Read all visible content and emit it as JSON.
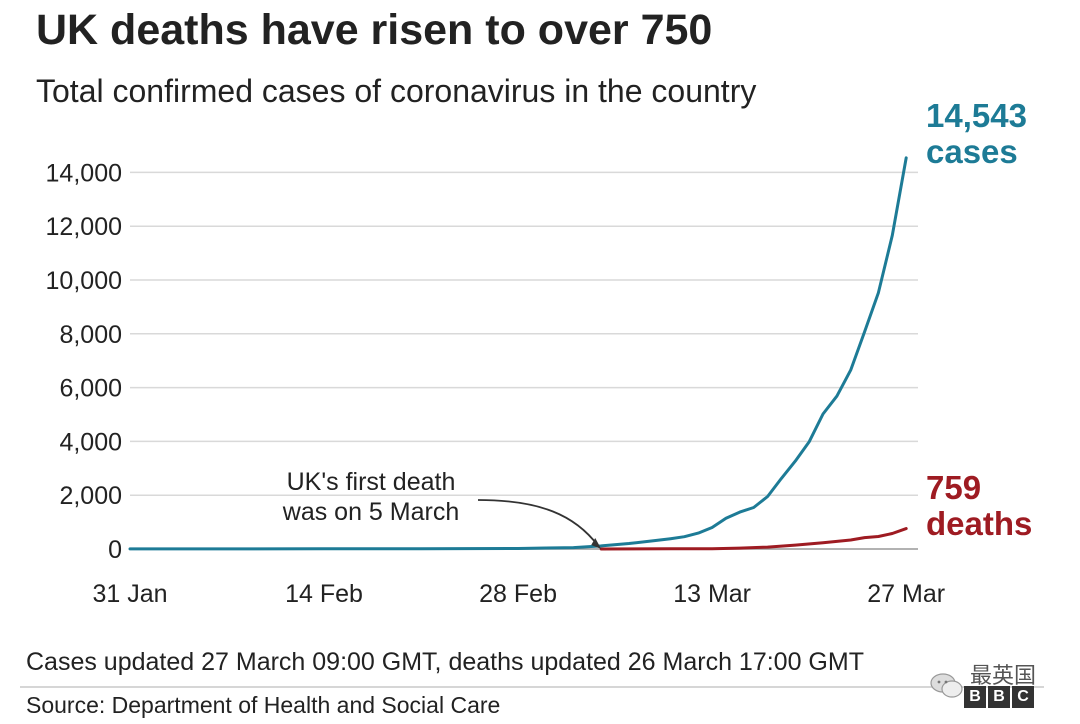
{
  "header": {
    "title": "UK deaths have risen to over 750",
    "subtitle": "Total confirmed cases of coronavirus in the country"
  },
  "chart_data": {
    "type": "line",
    "x_start": "2020-01-31",
    "xticks": [
      "31 Jan",
      "14 Feb",
      "28 Feb",
      "13 Mar",
      "27 Mar"
    ],
    "yticks": [
      "0",
      "2,000",
      "4,000",
      "6,000",
      "8,000",
      "10,000",
      "12,000",
      "14,000"
    ],
    "ylim": [
      0,
      14000
    ],
    "grid": true,
    "series": [
      {
        "name": "cases",
        "color": "#1d7b96",
        "end_label": [
          "14,543",
          "cases"
        ],
        "points": [
          [
            "2020-01-31",
            2
          ],
          [
            "2020-02-07",
            3
          ],
          [
            "2020-02-14",
            9
          ],
          [
            "2020-02-21",
            9
          ],
          [
            "2020-02-28",
            20
          ],
          [
            "2020-03-01",
            36
          ],
          [
            "2020-03-03",
            51
          ],
          [
            "2020-03-05",
            115
          ],
          [
            "2020-03-07",
            206
          ],
          [
            "2020-03-09",
            321
          ],
          [
            "2020-03-10",
            382
          ],
          [
            "2020-03-11",
            456
          ],
          [
            "2020-03-12",
            590
          ],
          [
            "2020-03-13",
            798
          ],
          [
            "2020-03-14",
            1140
          ],
          [
            "2020-03-15",
            1372
          ],
          [
            "2020-03-16",
            1543
          ],
          [
            "2020-03-17",
            1950
          ],
          [
            "2020-03-18",
            2626
          ],
          [
            "2020-03-19",
            3269
          ],
          [
            "2020-03-20",
            3983
          ],
          [
            "2020-03-21",
            5018
          ],
          [
            "2020-03-22",
            5683
          ],
          [
            "2020-03-23",
            6650
          ],
          [
            "2020-03-24",
            8077
          ],
          [
            "2020-03-25",
            9529
          ],
          [
            "2020-03-26",
            11658
          ],
          [
            "2020-03-27",
            14543
          ]
        ]
      },
      {
        "name": "deaths",
        "color": "#9e1b22",
        "end_label": [
          "759",
          "deaths"
        ],
        "points": [
          [
            "2020-03-05",
            1
          ],
          [
            "2020-03-10",
            6
          ],
          [
            "2020-03-13",
            11
          ],
          [
            "2020-03-15",
            35
          ],
          [
            "2020-03-17",
            71
          ],
          [
            "2020-03-19",
            144
          ],
          [
            "2020-03-21",
            233
          ],
          [
            "2020-03-23",
            335
          ],
          [
            "2020-03-24",
            422
          ],
          [
            "2020-03-25",
            465
          ],
          [
            "2020-03-26",
            578
          ],
          [
            "2020-03-27",
            759
          ]
        ]
      }
    ],
    "annotation": {
      "lines": [
        "UK's first death",
        "was on 5 March"
      ],
      "date": "2020-03-05",
      "value": 0
    }
  },
  "footer": {
    "note": "Cases updated 27 March 09:00 GMT, deaths updated 26 March 17:00 GMT",
    "source": "Source: Department of Health and Social Care",
    "watermark_text": "最英国",
    "watermark_icon": "wechat-icon",
    "logo_letters": [
      "B",
      "B",
      "C"
    ]
  }
}
